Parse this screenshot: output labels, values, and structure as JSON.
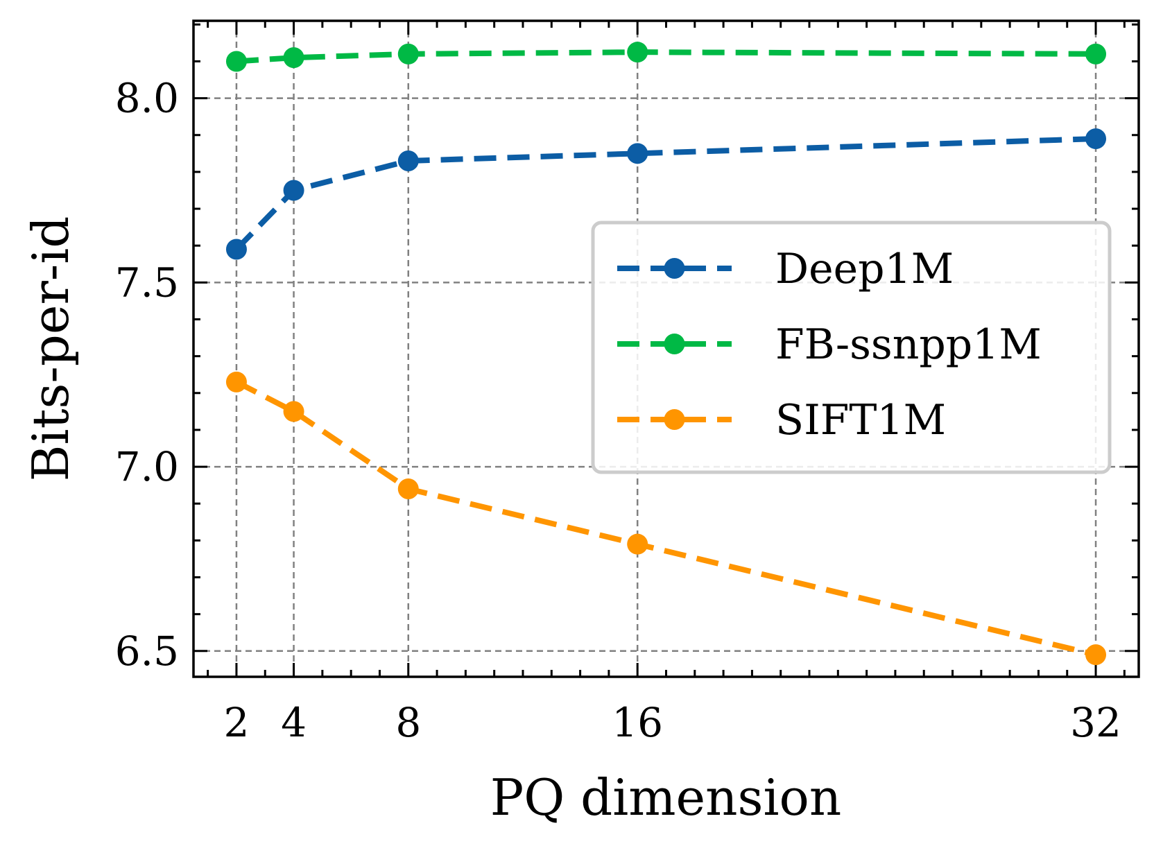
{
  "chart_data": {
    "type": "line",
    "title": "",
    "xlabel": "PQ dimension",
    "ylabel": "Bits-per-id",
    "x": [
      2,
      4,
      8,
      16,
      32
    ],
    "xticks": [
      2,
      4,
      8,
      16,
      32
    ],
    "xtick_labels": [
      "2",
      "4",
      "8",
      "16",
      "32"
    ],
    "xlim": [
      0.5,
      33.5
    ],
    "ylim": [
      6.43,
      8.21
    ],
    "yticks": [
      6.5,
      7.0,
      7.5,
      8.0
    ],
    "ytick_labels": [
      "6.5",
      "7.0",
      "7.5",
      "8.0"
    ],
    "grid": true,
    "legend_position": "center-right",
    "series": [
      {
        "name": "Deep1M",
        "color": "#0C5DA5",
        "values": [
          7.59,
          7.75,
          7.83,
          7.85,
          7.89
        ]
      },
      {
        "name": "FB-ssnpp1M",
        "color": "#00B945",
        "values": [
          8.1,
          8.11,
          8.12,
          8.125,
          8.12
        ]
      },
      {
        "name": "SIFT1M",
        "color": "#FF9500",
        "values": [
          7.23,
          7.15,
          6.94,
          6.79,
          6.49
        ]
      }
    ]
  }
}
